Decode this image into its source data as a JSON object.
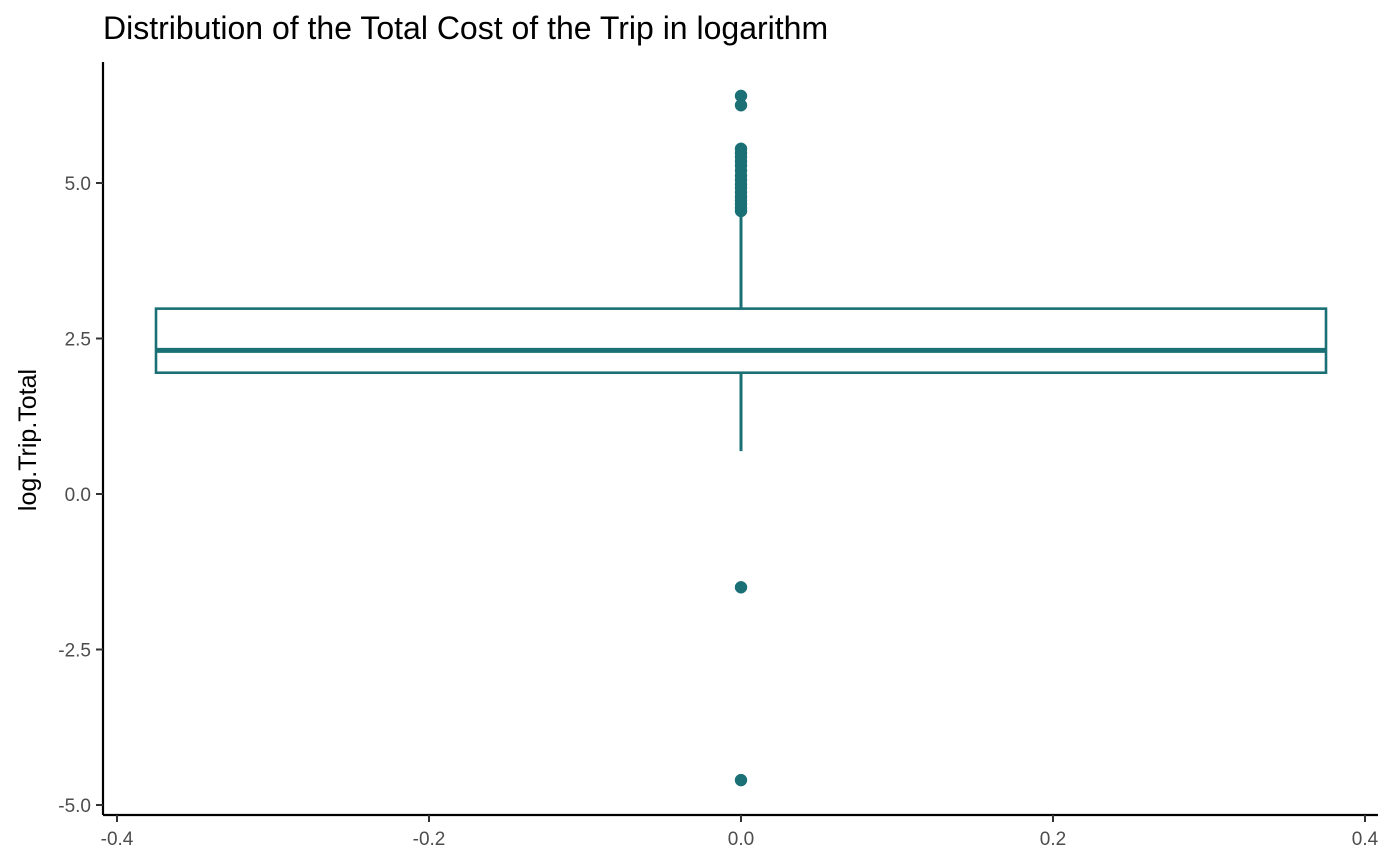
{
  "chart_data": {
    "type": "box",
    "title": "Distribution of the Total Cost of the Trip in logarithm",
    "xlabel": "",
    "ylabel": "log.Trip.Total",
    "xlim": [
      -0.4,
      0.4
    ],
    "ylim": [
      -5.0,
      6.5
    ],
    "x_ticks": [
      {
        "value": -0.4,
        "label": "-0.4"
      },
      {
        "value": -0.2,
        "label": "-0.2"
      },
      {
        "value": 0.0,
        "label": "0.0"
      },
      {
        "value": 0.2,
        "label": "0.2"
      },
      {
        "value": 0.4,
        "label": "0.4"
      }
    ],
    "y_ticks": [
      {
        "value": -5.0,
        "label": "-5.0"
      },
      {
        "value": -2.5,
        "label": "-2.5"
      },
      {
        "value": 0.0,
        "label": "0.0"
      },
      {
        "value": 2.5,
        "label": "2.5"
      },
      {
        "value": 5.0,
        "label": "5.0"
      }
    ],
    "grid": false,
    "legend": "none",
    "color": "#1a7075",
    "box": {
      "x": 0.0,
      "width": 0.75,
      "lower_whisker": 0.69,
      "q1": 1.95,
      "median": 2.31,
      "q3": 2.98,
      "upper_whisker": 4.5
    },
    "outliers": [
      6.4,
      6.25,
      5.55,
      5.48,
      5.42,
      5.35,
      5.28,
      5.2,
      5.12,
      5.05,
      4.98,
      4.92,
      4.85,
      4.78,
      4.72,
      4.66,
      4.6,
      4.55,
      -1.5,
      -4.6
    ]
  }
}
